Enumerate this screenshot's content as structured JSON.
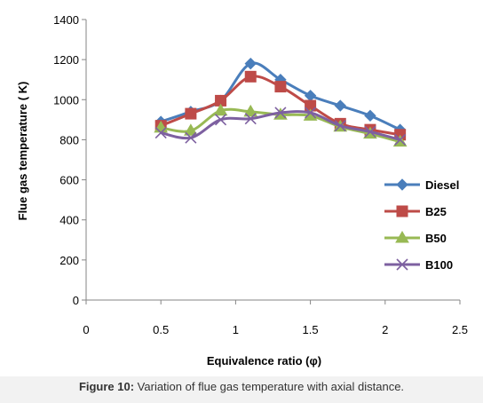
{
  "caption": {
    "label": "Figure 10:",
    "text": " Variation of flue gas temperature with axial distance."
  },
  "chart_data": {
    "type": "line",
    "title": "",
    "xlabel": "Equivalence ratio (φ)",
    "ylabel": "Flue gas temperature ( K)",
    "xlim": [
      0,
      2.5
    ],
    "ylim": [
      0,
      1400
    ],
    "xticks": [
      "0",
      "0.5",
      "1",
      "1.5",
      "2",
      "2.5"
    ],
    "yticks": [
      "0",
      "200",
      "400",
      "600",
      "800",
      "1000",
      "1200",
      "1400"
    ],
    "grid": false,
    "legend_position": "right",
    "series": [
      {
        "name": "Diesel",
        "color": "#4a7ebb",
        "marker": "diamond",
        "x": [
          0.5,
          0.7,
          0.9,
          1.1,
          1.3,
          1.5,
          1.7,
          1.9,
          2.1
        ],
        "y": [
          890,
          940,
          995,
          1180,
          1100,
          1020,
          970,
          920,
          850
        ]
      },
      {
        "name": "B25",
        "color": "#be4b48",
        "marker": "square",
        "x": [
          0.5,
          0.7,
          0.9,
          1.1,
          1.3,
          1.5,
          1.7,
          1.9,
          2.1
        ],
        "y": [
          870,
          930,
          995,
          1115,
          1065,
          970,
          880,
          850,
          825
        ]
      },
      {
        "name": "B50",
        "color": "#98b954",
        "marker": "triangle",
        "x": [
          0.5,
          0.7,
          0.9,
          1.1,
          1.3,
          1.5,
          1.7,
          1.9,
          2.1
        ],
        "y": [
          860,
          845,
          945,
          940,
          925,
          920,
          865,
          830,
          790
        ]
      },
      {
        "name": "B100",
        "color": "#7d60a0",
        "marker": "x",
        "x": [
          0.5,
          0.7,
          0.9,
          1.1,
          1.3,
          1.5,
          1.7,
          1.9,
          2.1
        ],
        "y": [
          835,
          810,
          900,
          905,
          935,
          935,
          870,
          840,
          800
        ]
      }
    ]
  }
}
